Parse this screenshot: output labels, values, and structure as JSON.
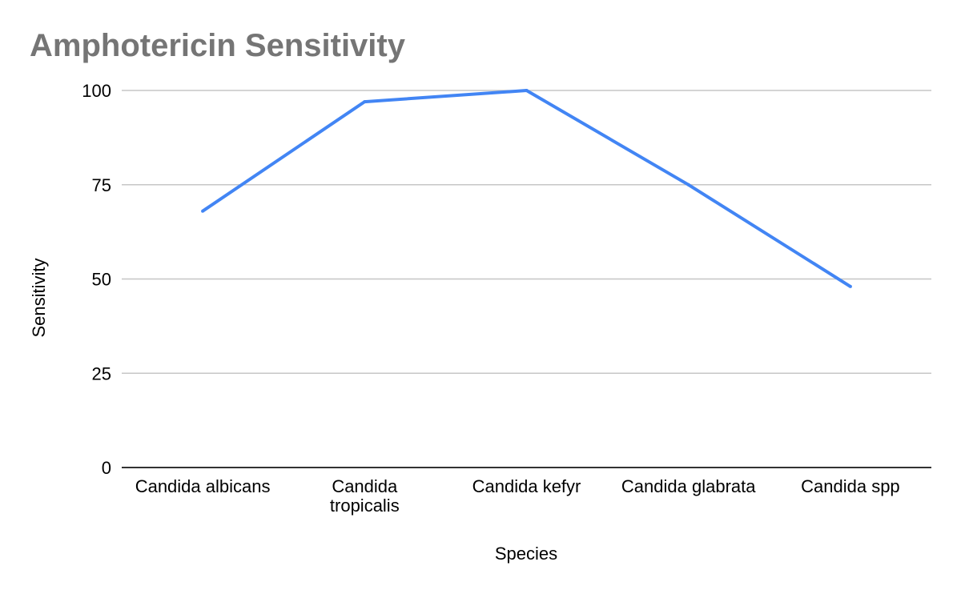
{
  "chart_data": {
    "type": "line",
    "title": "Amphotericin Sensitivity",
    "xlabel": "Species",
    "ylabel": "Sensitivity",
    "categories": [
      [
        "Candida albicans"
      ],
      [
        "Candida",
        "tropicalis"
      ],
      [
        "Candida kefyr"
      ],
      [
        "Candida glabrata"
      ],
      [
        "Candida spp"
      ]
    ],
    "series": [
      {
        "values": [
          68,
          97,
          100,
          75,
          48
        ],
        "color": "#4285f4"
      }
    ],
    "ylim": [
      0,
      100
    ],
    "yticks": [
      "0",
      "25",
      "50",
      "75",
      "100"
    ],
    "grid": true,
    "legend": "none"
  }
}
